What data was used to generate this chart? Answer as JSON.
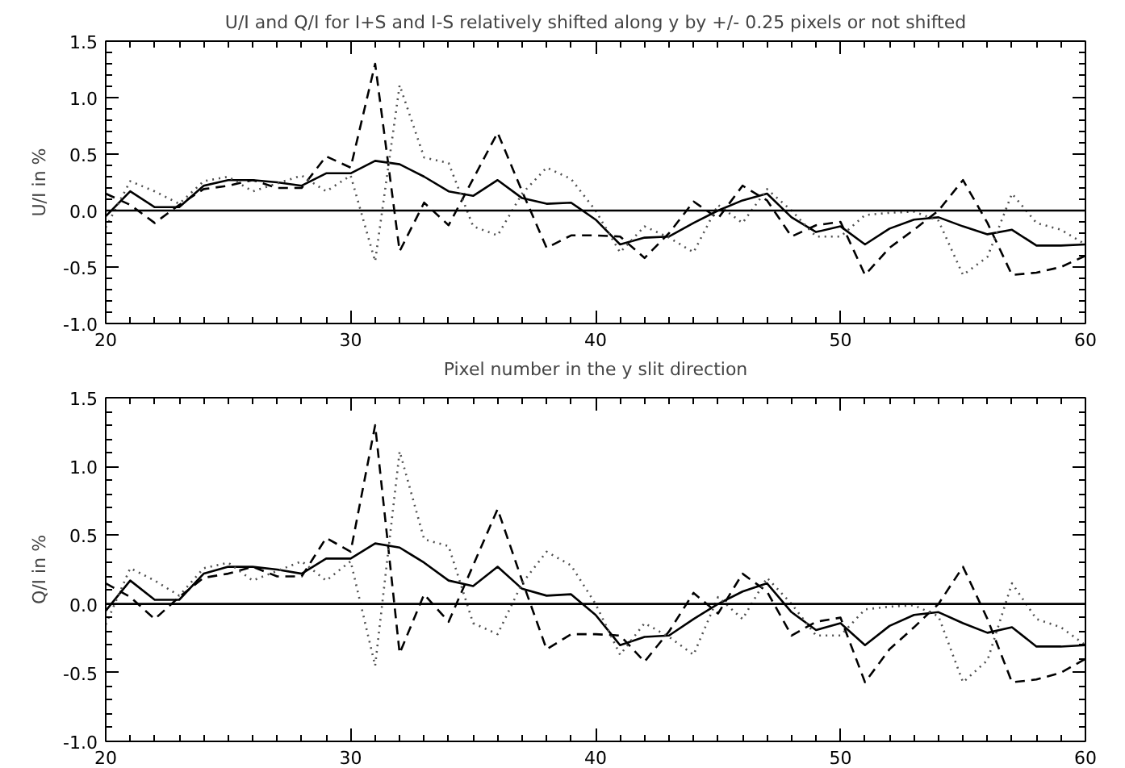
{
  "chart_data": [
    {
      "type": "line",
      "title": "U/I and Q/I for I+S and I-S relatively shifted along y by +/- 0.25 pixels or not shifted",
      "xlabel": "Pixel number in the y slit direction",
      "ylabel": "U/I in %",
      "x": [
        20,
        21,
        22,
        23,
        24,
        25,
        26,
        27,
        28,
        29,
        30,
        31,
        32,
        33,
        34,
        35,
        36,
        37,
        38,
        39,
        40,
        41,
        42,
        43,
        44,
        45,
        46,
        47,
        48,
        49,
        50,
        51,
        52,
        53,
        54,
        55,
        56,
        57,
        58,
        59,
        60
      ],
      "series": [
        {
          "color": "#000000",
          "line_style": "solid",
          "values": [
            -0.05,
            0.17,
            0.03,
            0.03,
            0.22,
            0.27,
            0.27,
            0.25,
            0.22,
            0.33,
            0.33,
            0.44,
            0.41,
            0.3,
            0.17,
            0.13,
            0.27,
            0.11,
            0.06,
            0.07,
            -0.08,
            -0.3,
            -0.24,
            -0.23,
            -0.11,
            0.0,
            0.09,
            0.15,
            -0.06,
            -0.19,
            -0.14,
            -0.3,
            -0.16,
            -0.08,
            -0.06,
            -0.14,
            -0.21,
            -0.17,
            -0.31,
            -0.31,
            -0.3
          ]
        },
        {
          "color": "#000000",
          "line_style": "dashed",
          "values": [
            0.15,
            0.05,
            -0.11,
            0.05,
            0.19,
            0.22,
            0.27,
            0.2,
            0.2,
            0.48,
            0.38,
            1.3,
            -0.36,
            0.07,
            -0.13,
            0.28,
            0.69,
            0.17,
            -0.33,
            -0.22,
            -0.22,
            -0.23,
            -0.42,
            -0.2,
            0.08,
            -0.07,
            0.22,
            0.09,
            -0.23,
            -0.13,
            -0.1,
            -0.57,
            -0.33,
            -0.17,
            0.0,
            0.27,
            -0.11,
            -0.57,
            -0.55,
            -0.5,
            -0.4
          ]
        },
        {
          "color": "#505050",
          "line_style": "dotted",
          "values": [
            -0.15,
            0.26,
            0.17,
            0.06,
            0.26,
            0.3,
            0.17,
            0.24,
            0.31,
            0.17,
            0.31,
            -0.45,
            1.11,
            0.47,
            0.42,
            -0.14,
            -0.22,
            0.15,
            0.38,
            0.28,
            0.0,
            -0.37,
            -0.14,
            -0.24,
            -0.37,
            0.05,
            -0.11,
            0.19,
            0.0,
            -0.23,
            -0.23,
            -0.04,
            -0.02,
            -0.01,
            -0.09,
            -0.57,
            -0.41,
            0.15,
            -0.11,
            -0.17,
            -0.3
          ]
        }
      ],
      "xlim": [
        20,
        60
      ],
      "ylim": [
        -1.0,
        1.5
      ],
      "xticks": [
        20,
        30,
        40,
        50,
        60
      ],
      "yticks": [
        {
          "value": -1.0,
          "label": "-1.0"
        },
        {
          "value": -0.5,
          "label": "-0.5"
        },
        {
          "value": 0.0,
          "label": "0.0"
        },
        {
          "value": 0.5,
          "label": "0.5"
        },
        {
          "value": 1.0,
          "label": "1.0"
        },
        {
          "value": 1.5,
          "label": "1.5"
        }
      ],
      "ref_lines": [
        {
          "axis": "y",
          "value": 0,
          "color": "#000000",
          "line_style": "solid"
        }
      ]
    },
    {
      "type": "line",
      "ylabel": "Q/I in %",
      "x": [
        20,
        21,
        22,
        23,
        24,
        25,
        26,
        27,
        28,
        29,
        30,
        31,
        32,
        33,
        34,
        35,
        36,
        37,
        38,
        39,
        40,
        41,
        42,
        43,
        44,
        45,
        46,
        47,
        48,
        49,
        50,
        51,
        52,
        53,
        54,
        55,
        56,
        57,
        58,
        59,
        60
      ],
      "series": [
        {
          "color": "#000000",
          "line_style": "solid",
          "values": [
            -0.05,
            0.17,
            0.03,
            0.03,
            0.22,
            0.27,
            0.27,
            0.25,
            0.22,
            0.33,
            0.33,
            0.44,
            0.41,
            0.3,
            0.17,
            0.13,
            0.27,
            0.11,
            0.06,
            0.07,
            -0.08,
            -0.3,
            -0.24,
            -0.23,
            -0.11,
            0.0,
            0.09,
            0.15,
            -0.06,
            -0.19,
            -0.14,
            -0.3,
            -0.16,
            -0.08,
            -0.06,
            -0.14,
            -0.21,
            -0.17,
            -0.31,
            -0.31,
            -0.3
          ]
        },
        {
          "color": "#000000",
          "line_style": "dashed",
          "values": [
            0.15,
            0.05,
            -0.11,
            0.05,
            0.19,
            0.22,
            0.27,
            0.2,
            0.2,
            0.48,
            0.38,
            1.3,
            -0.36,
            0.07,
            -0.13,
            0.28,
            0.69,
            0.17,
            -0.33,
            -0.22,
            -0.22,
            -0.23,
            -0.42,
            -0.2,
            0.08,
            -0.07,
            0.22,
            0.09,
            -0.23,
            -0.13,
            -0.1,
            -0.57,
            -0.33,
            -0.17,
            0.0,
            0.27,
            -0.11,
            -0.57,
            -0.55,
            -0.5,
            -0.4
          ]
        },
        {
          "color": "#505050",
          "line_style": "dotted",
          "values": [
            -0.15,
            0.26,
            0.17,
            0.06,
            0.26,
            0.3,
            0.17,
            0.24,
            0.31,
            0.17,
            0.31,
            -0.45,
            1.11,
            0.47,
            0.42,
            -0.14,
            -0.22,
            0.15,
            0.38,
            0.28,
            0.0,
            -0.37,
            -0.14,
            -0.24,
            -0.37,
            0.05,
            -0.11,
            0.19,
            0.0,
            -0.23,
            -0.23,
            -0.04,
            -0.02,
            -0.01,
            -0.09,
            -0.57,
            -0.41,
            0.15,
            -0.11,
            -0.17,
            -0.3
          ]
        }
      ],
      "xlim": [
        20,
        60
      ],
      "ylim": [
        -1.0,
        1.5
      ],
      "xticks": [
        20,
        30,
        40,
        50,
        60
      ],
      "yticks": [
        {
          "value": -1.0,
          "label": "-1.0"
        },
        {
          "value": -0.5,
          "label": "-0.5"
        },
        {
          "value": 0.0,
          "label": "0.0"
        },
        {
          "value": 0.5,
          "label": "0.5"
        },
        {
          "value": 1.0,
          "label": "1.0"
        },
        {
          "value": 1.5,
          "label": "1.5"
        }
      ],
      "ref_lines": [
        {
          "axis": "y",
          "value": 0,
          "color": "#000000",
          "line_style": "solid"
        }
      ]
    }
  ]
}
